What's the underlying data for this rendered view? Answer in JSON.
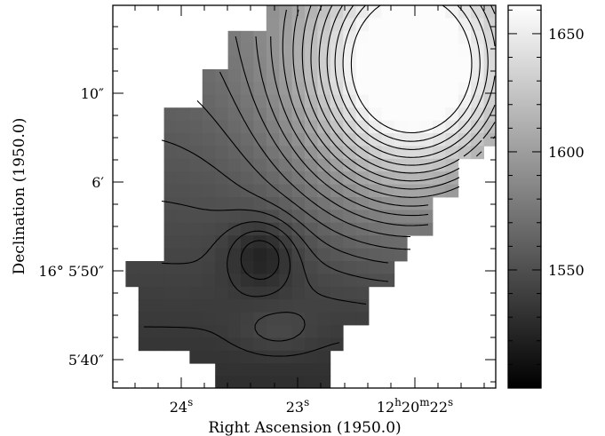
{
  "chart_data": {
    "type": "heatmap",
    "title": "",
    "xlabel": "Right Ascension (1950.0)",
    "ylabel": "Declination (1950.0)",
    "x_ticks": [
      {
        "parts": [
          {
            "t": "24"
          },
          {
            "t": "s",
            "sup": true
          }
        ]
      },
      {
        "parts": [
          {
            "t": "23"
          },
          {
            "t": "s",
            "sup": true
          }
        ]
      },
      {
        "parts": [
          {
            "t": "12"
          },
          {
            "t": "h",
            "sup": true
          },
          {
            "t": "20"
          },
          {
            "t": "m",
            "sup": true
          },
          {
            "t": "22"
          },
          {
            "t": "s",
            "sup": true
          }
        ]
      }
    ],
    "y_ticks": [
      {
        "label": "10″"
      },
      {
        "label": "6′"
      },
      {
        "label": "16° 5′50″"
      },
      {
        "label": "5′40″"
      }
    ],
    "colorbar": {
      "range": [
        1500,
        1662
      ],
      "ticks": [
        1550,
        1600,
        1650
      ],
      "colors": [
        "#000000",
        "#ffffff"
      ]
    },
    "contours": "iso-velocity contour lines overlaid on gray-scale velocity field",
    "grid": false,
    "legend": "colorbar-right"
  }
}
